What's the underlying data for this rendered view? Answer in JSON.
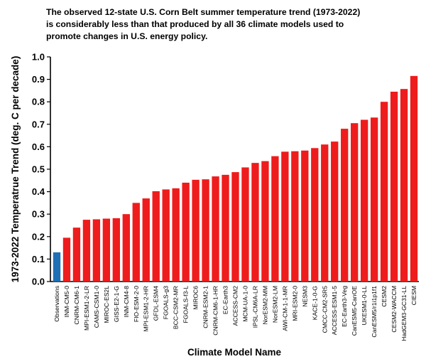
{
  "title_lines": [
    "The observed 12-state U.S. Corn Belt summer temperature trend (1973-2022)",
    "is considerably less than that produced by all 36 climate models used to",
    "promote changes in U.S. energy policy."
  ],
  "chart_data": {
    "type": "bar",
    "title": "The observed 12-state U.S. Corn Belt summer temperature trend (1973-2022) is considerably less than that produced by all 36 climate models used to promote changes in U.S. energy policy.",
    "xlabel": "Climate Model Name",
    "ylabel": "1973-2022 Temperatrue Trend (deg. C per decade)",
    "ylim": [
      0,
      1.0
    ],
    "yticks": [
      "0.0",
      "0.1",
      "0.2",
      "0.3",
      "0.4",
      "0.5",
      "0.6",
      "0.7",
      "0.8",
      "0.9",
      "1.0"
    ],
    "grid": false,
    "categories": [
      "Observations",
      "INM-CM5-0",
      "CNRM-CM6-1",
      "MPI-ESM1-2-LR",
      "CAMS-CSM1-0",
      "MIROC-ES2L",
      "GISS-E2-1-G",
      "INM-CM4-8",
      "FIO-ESM-2-0",
      "MPI-ESM1-2-HR",
      "GFDL-ESM4",
      "FGOALS-g3",
      "BCC-CSM2-MR",
      "FGOALS-f3-L",
      "MIROC6",
      "CNRM-ESM2-1",
      "CNRM-CM6-1-HR",
      "EC-Earth3",
      "ACCESS-CM2",
      "MCM-UA-1-0",
      "IPSL-CM6A-LR",
      "NorESM2-MM",
      "NorESM2-LM",
      "AWI-CM-1-1-MR",
      "MRI-ESM2-0",
      "NESM3",
      "KACE-1-0-G",
      "CMCC-CM2-SR5",
      "ACCESS-ESM1-5",
      "EC-Earth3-Veg",
      "CanESM5-CanOE",
      "UKESM1-0-LL",
      "CanESM5/r1i1p1f1",
      "CESM2",
      "CESM2-WACCM",
      "HadGEM3-GC31-LL",
      "CIESM"
    ],
    "values": [
      0.13,
      0.195,
      0.24,
      0.275,
      0.277,
      0.28,
      0.282,
      0.3,
      0.35,
      0.37,
      0.402,
      0.41,
      0.415,
      0.44,
      0.453,
      0.455,
      0.468,
      0.475,
      0.487,
      0.508,
      0.528,
      0.536,
      0.558,
      0.578,
      0.58,
      0.583,
      0.594,
      0.61,
      0.623,
      0.68,
      0.705,
      0.72,
      0.73,
      0.8,
      0.845,
      0.857,
      0.915
    ],
    "colors": {
      "observations": "#1f6fb5",
      "models": "#ee1c1c"
    }
  }
}
